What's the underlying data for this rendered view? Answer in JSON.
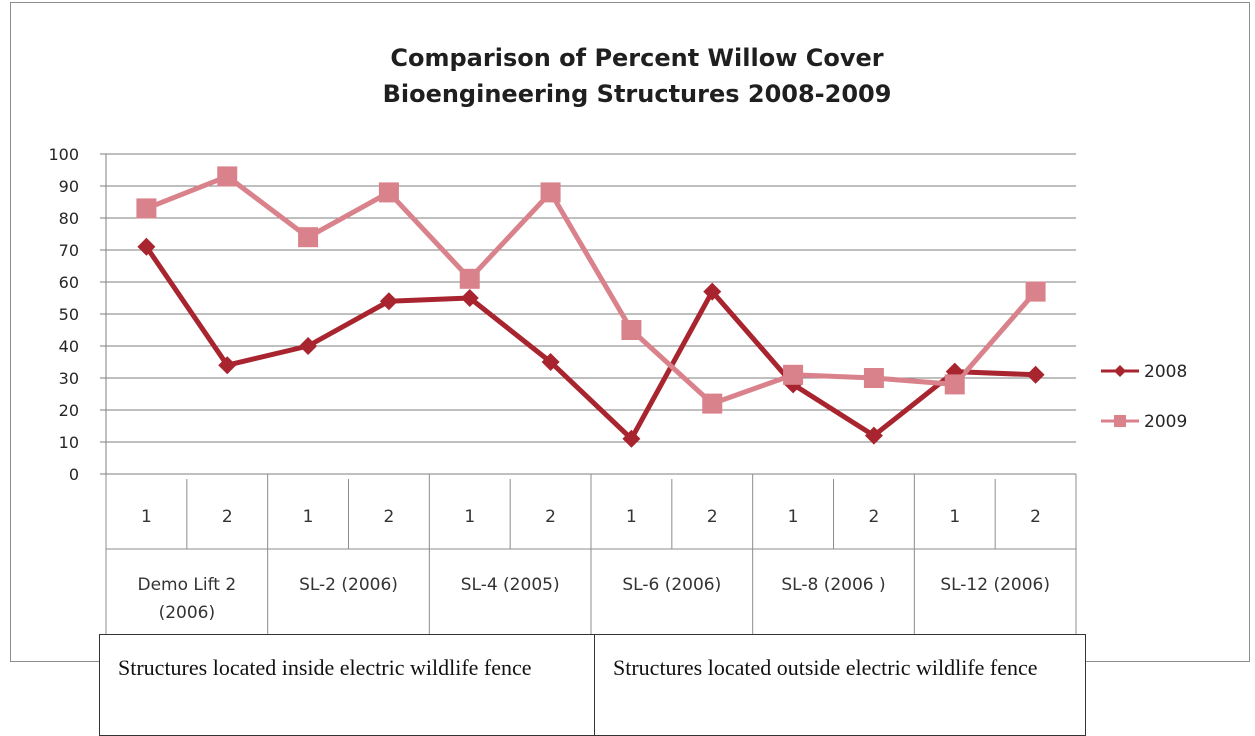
{
  "chart_data": {
    "type": "line",
    "title": "Comparison of Percent Willow Cover",
    "subtitle": "Bioengineering Structures 2008-2009",
    "xlabel": "",
    "ylabel": "",
    "ylim": [
      0,
      100
    ],
    "yticks": [
      "0",
      "10",
      "20",
      "30",
      "40",
      "50",
      "60",
      "70",
      "80",
      "90",
      "100"
    ],
    "grid": true,
    "legend_position": "right",
    "x": [
      "1",
      "2",
      "1",
      "2",
      "1",
      "2",
      "1",
      "2",
      "1",
      "2",
      "1",
      "2"
    ],
    "groups": [
      "Demo Lift 2 (2006)",
      "SL-2 (2006)",
      "SL-4 (2005)",
      "SL-6 (2006)",
      "SL-8 (2006 )",
      "SL-12 (2006)"
    ],
    "series": [
      {
        "name": "2008",
        "color": "#a8252f",
        "marker": "diamond",
        "values": [
          71,
          34,
          40,
          54,
          55,
          35,
          11,
          57,
          28,
          12,
          32,
          31
        ]
      },
      {
        "name": "2009",
        "color": "#d9828b",
        "marker": "square",
        "values": [
          83,
          93,
          74,
          88,
          61,
          88,
          45,
          22,
          31,
          30,
          28,
          57
        ]
      }
    ]
  },
  "notes": {
    "inside": "Structures located inside electric wildlife fence",
    "outside": "Structures located outside electric wildlife fence"
  }
}
